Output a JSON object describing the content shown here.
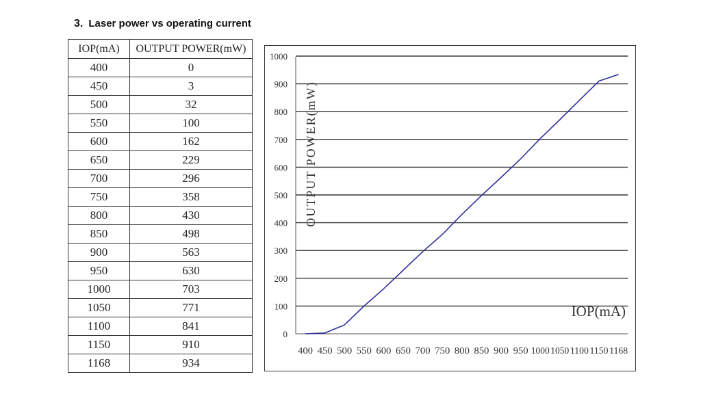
{
  "heading": {
    "number": "3.",
    "text": "Laser power vs operating current"
  },
  "table": {
    "headers": [
      "IOP(mA)",
      "OUTPUT POWER(mW)"
    ],
    "rows": [
      [
        "400",
        "0"
      ],
      [
        "450",
        "3"
      ],
      [
        "500",
        "32"
      ],
      [
        "550",
        "100"
      ],
      [
        "600",
        "162"
      ],
      [
        "650",
        "229"
      ],
      [
        "700",
        "296"
      ],
      [
        "750",
        "358"
      ],
      [
        "800",
        "430"
      ],
      [
        "850",
        "498"
      ],
      [
        "900",
        "563"
      ],
      [
        "950",
        "630"
      ],
      [
        "1000",
        "703"
      ],
      [
        "1050",
        "771"
      ],
      [
        "1100",
        "841"
      ],
      [
        "1150",
        "910"
      ],
      [
        "1168",
        "934"
      ]
    ]
  },
  "chart_data": {
    "type": "line",
    "title": "",
    "xlabel": "IOP(mA)",
    "ylabel": "OUTPUT POWER(mW)",
    "categories": [
      "400",
      "450",
      "500",
      "550",
      "600",
      "650",
      "700",
      "750",
      "800",
      "850",
      "900",
      "950",
      "1000",
      "1050",
      "1100",
      "1150",
      "1168"
    ],
    "series": [
      {
        "values": [
          0,
          3,
          32,
          100,
          162,
          229,
          296,
          358,
          430,
          498,
          563,
          630,
          703,
          771,
          841,
          910,
          934
        ]
      }
    ],
    "ylim": [
      0,
      1000
    ],
    "yticks": [
      "0",
      "100",
      "200",
      "300",
      "400",
      "500",
      "600",
      "700",
      "800",
      "900",
      "1000"
    ],
    "grid": "horizontal",
    "line_color": "#2e2e9a"
  }
}
